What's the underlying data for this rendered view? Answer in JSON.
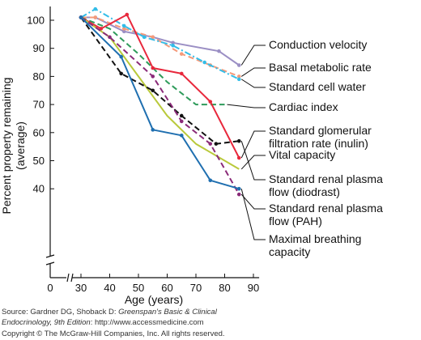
{
  "chart_data": {
    "type": "line",
    "xlabel": "Age (years)",
    "ylabel_lines": [
      "Percent property remaining",
      "(average)"
    ],
    "xlim": [
      0,
      90
    ],
    "ylim": [
      0,
      100
    ],
    "x_ticks": [
      0,
      30,
      40,
      50,
      60,
      70,
      80,
      90
    ],
    "y_ticks": [
      40,
      50,
      60,
      70,
      80,
      90,
      100
    ],
    "series": [
      {
        "name": "Conduction velocity",
        "color": "#9b8fc4",
        "style": "solid",
        "marker": true,
        "points": [
          [
            30,
            101
          ],
          [
            35,
            101
          ],
          [
            45,
            96
          ],
          [
            55,
            94
          ],
          [
            62,
            92
          ],
          [
            78,
            89
          ],
          [
            85,
            84
          ]
        ]
      },
      {
        "name": "Basal metabolic rate",
        "color": "#f59a7a",
        "style": "dashed",
        "marker": true,
        "points": [
          [
            30,
            101
          ],
          [
            35,
            101
          ],
          [
            45,
            97
          ],
          [
            55,
            94
          ],
          [
            65,
            88
          ],
          [
            75,
            84
          ],
          [
            85,
            80
          ]
        ]
      },
      {
        "name": "Standard cell water",
        "color": "#33bde8",
        "style": "dashdot",
        "marker": true,
        "points": [
          [
            30,
            101
          ],
          [
            35,
            104
          ],
          [
            45,
            98
          ],
          [
            52,
            94
          ],
          [
            62,
            91
          ],
          [
            73,
            85
          ],
          [
            85,
            79
          ]
        ]
      },
      {
        "name": "Cardiac index",
        "color": "#2e9b5a",
        "style": "dashed",
        "marker": false,
        "points": [
          [
            30,
            101
          ],
          [
            40,
            97
          ],
          [
            50,
            88
          ],
          [
            60,
            78
          ],
          [
            70,
            70
          ],
          [
            80,
            70
          ]
        ]
      },
      {
        "name": "Standard glomerular filtration rate (inulin)",
        "color": "#e8283c",
        "style": "solid",
        "marker": true,
        "points": [
          [
            30,
            101
          ],
          [
            37,
            97
          ],
          [
            46,
            102
          ],
          [
            55,
            83
          ],
          [
            65,
            81
          ],
          [
            75,
            71
          ],
          [
            85,
            51
          ]
        ]
      },
      {
        "name": "Vital capacity",
        "color": "#b9c93a",
        "style": "solid",
        "marker": false,
        "points": [
          [
            30,
            101
          ],
          [
            40,
            94
          ],
          [
            50,
            80
          ],
          [
            60,
            66
          ],
          [
            70,
            56
          ],
          [
            85,
            47
          ]
        ]
      },
      {
        "name": "Standard renal plasma flow (diodrast)",
        "color": "#111111",
        "style": "dashed",
        "marker": true,
        "points": [
          [
            30,
            101
          ],
          [
            44,
            81
          ],
          [
            55,
            75
          ],
          [
            65,
            66
          ],
          [
            77,
            56
          ],
          [
            85,
            57
          ]
        ]
      },
      {
        "name": "Standard renal plasma flow (PAH)",
        "color": "#8a2a78",
        "style": "dashed",
        "marker": true,
        "points": [
          [
            30,
            101
          ],
          [
            40,
            94
          ],
          [
            55,
            80
          ],
          [
            65,
            64
          ],
          [
            75,
            56
          ],
          [
            85,
            38
          ]
        ]
      },
      {
        "name": "Maximal breathing capacity",
        "color": "#1f6fb0",
        "style": "solid",
        "marker": true,
        "points": [
          [
            30,
            101
          ],
          [
            44,
            87
          ],
          [
            55,
            61
          ],
          [
            65,
            59
          ],
          [
            75,
            43
          ],
          [
            85,
            40
          ]
        ]
      }
    ],
    "legend_lines": [
      [
        "Conduction velocity"
      ],
      [
        "Basal metabolic rate"
      ],
      [
        "Standard cell water"
      ],
      [
        "Cardiac index"
      ],
      [
        "Standard glomerular",
        "filtration rate (inulin)"
      ],
      [
        "Vital capacity"
      ],
      [
        "Standard renal plasma",
        "flow (diodrast)"
      ],
      [
        "Standard renal plasma",
        "flow (PAH)"
      ],
      [
        "Maximal breathing",
        "capacity"
      ]
    ],
    "axis_breaks": true
  },
  "footer": {
    "source_prefix": "Source: Gardner DG, Shoback D: ",
    "source_title_a": "Greenspan's Basic & Clinical",
    "source_title_b": "Endocrinology, 9th Edition",
    "source_suffix": ": http://www.accessmedicine.com",
    "copyright": "Copyright © The McGraw-Hill Companies, Inc. All rights reserved."
  }
}
